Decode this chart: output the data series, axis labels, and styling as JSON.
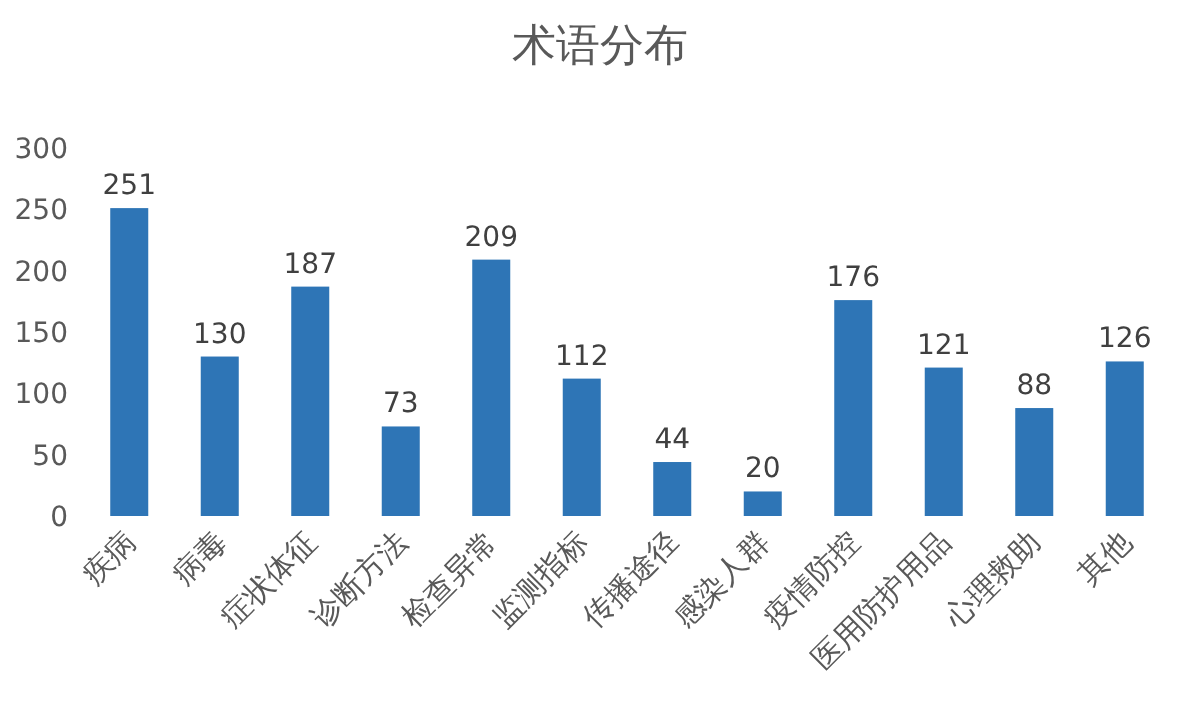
{
  "chart_data": {
    "type": "bar",
    "title": "术语分布",
    "categories": [
      "疾病",
      "病毒",
      "症状体征",
      "诊断方法",
      "检查异常",
      "监测指标",
      "传播途径",
      "感染人群",
      "疫情防控",
      "医用防护用品",
      "心理救助",
      "其他"
    ],
    "values": [
      251,
      130,
      187,
      73,
      209,
      112,
      44,
      20,
      176,
      121,
      88,
      126
    ],
    "color": "#2e75b6",
    "ylim": [
      0,
      300
    ],
    "yticks": [
      0,
      50,
      100,
      150,
      200,
      250,
      300
    ],
    "data_labels": true
  }
}
